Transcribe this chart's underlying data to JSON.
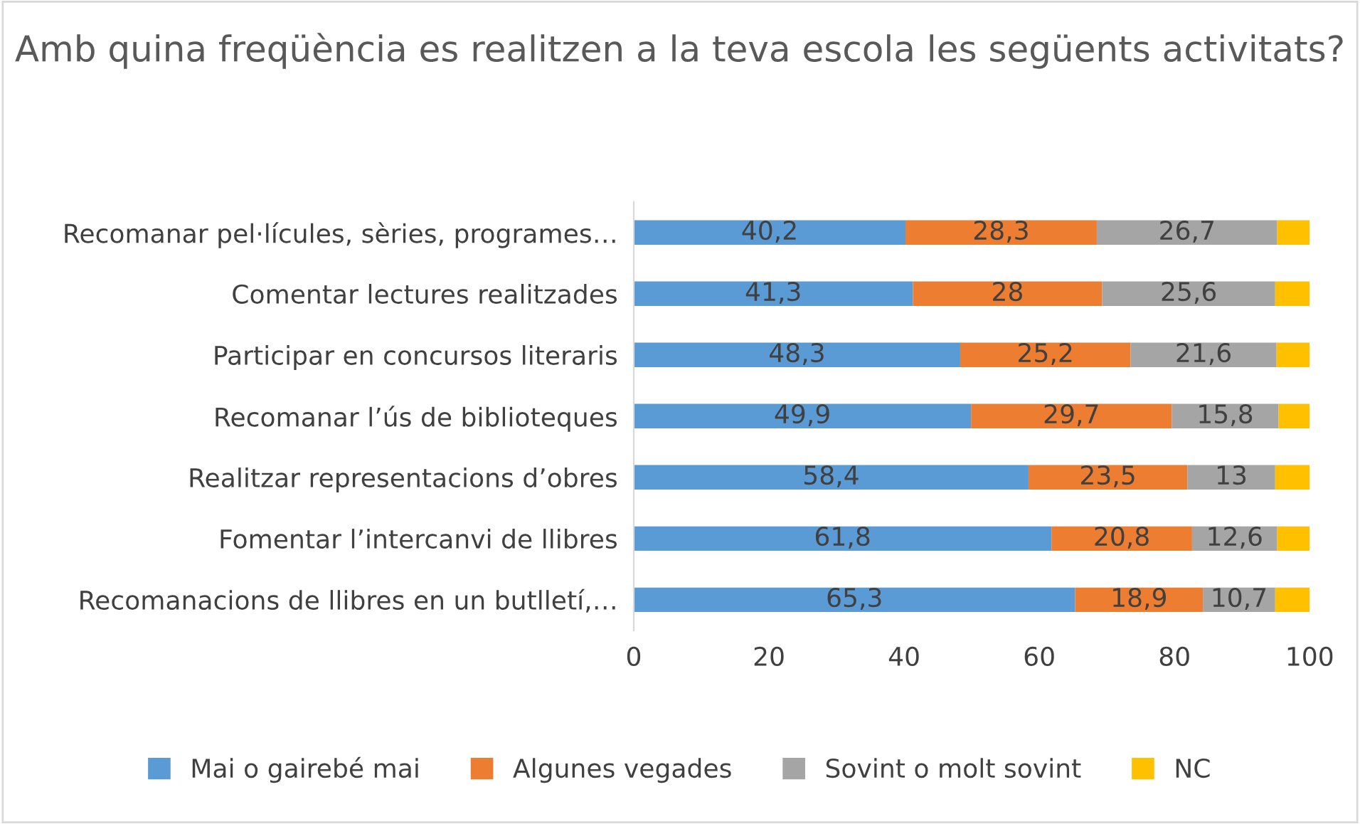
{
  "chart_data": {
    "type": "bar",
    "orientation": "horizontal",
    "stacked": true,
    "title": "Amb quina freqüència es realitzen a la teva escola les següents activitats?",
    "categories": [
      "Recomanar pel·lícules, sèries, programes…",
      "Comentar lectures realitzades",
      "Participar en concursos literaris",
      "Recomanar l’ús de biblioteques",
      "Realitzar representacions d’obres",
      "Fomentar l’intercanvi de llibres",
      "Recomanacions de llibres en un butlletí,…"
    ],
    "series": [
      {
        "name": "Mai o gairebé mai",
        "color": "#5b9bd5",
        "values": [
          40.2,
          41.3,
          48.3,
          49.9,
          58.4,
          61.8,
          65.3
        ],
        "value_labels": [
          "40,2",
          "41,3",
          "48,3",
          "49,9",
          "58,4",
          "61,8",
          "65,3"
        ]
      },
      {
        "name": "Algunes vegades",
        "color": "#ed7d31",
        "values": [
          28.3,
          28,
          25.2,
          29.7,
          23.5,
          20.8,
          18.9
        ],
        "value_labels": [
          "28,3",
          "28",
          "25,2",
          "29,7",
          "23,5",
          "20,8",
          "18,9"
        ]
      },
      {
        "name": "Sovint o molt sovint",
        "color": "#a5a5a5",
        "values": [
          26.7,
          25.6,
          21.6,
          15.8,
          13,
          12.6,
          10.7
        ],
        "value_labels": [
          "26,7",
          "25,6",
          "21,6",
          "15,8",
          "13",
          "12,6",
          "10,7"
        ]
      },
      {
        "name": "NC",
        "color": "#ffc000",
        "values": [
          4.8,
          5.1,
          4.9,
          4.6,
          5.1,
          4.8,
          5.1
        ]
      }
    ],
    "xlim": [
      0,
      100
    ],
    "xticks": [
      0,
      20,
      40,
      60,
      80,
      100
    ],
    "grid": false,
    "legend": "bottom"
  }
}
